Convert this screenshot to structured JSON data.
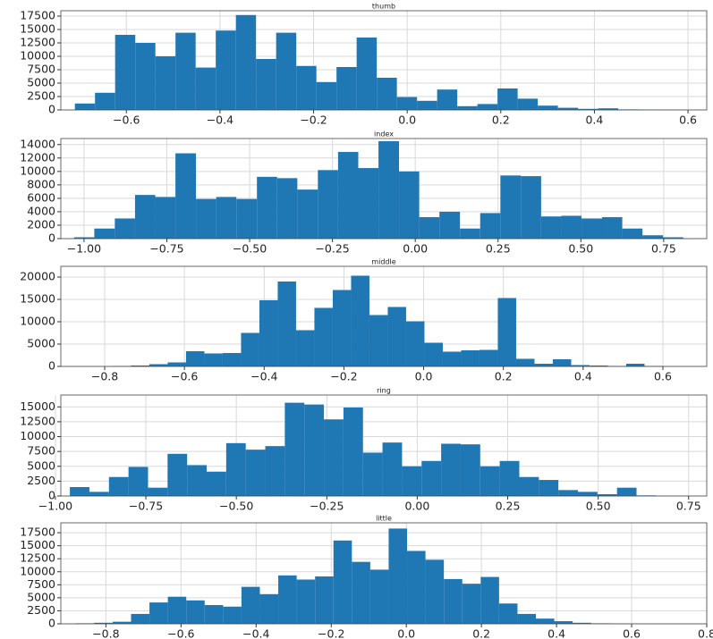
{
  "chart_data": [
    {
      "type": "histogram",
      "title": "thumb",
      "color": "#1f77b4",
      "grid": true,
      "bins": [
        -0.71,
        -0.667,
        -0.624,
        -0.581,
        -0.538,
        -0.495,
        -0.452,
        -0.409,
        -0.366,
        -0.323,
        -0.28,
        -0.237,
        -0.194,
        -0.151,
        -0.108,
        -0.065,
        -0.022,
        0.021,
        0.064,
        0.107,
        0.15,
        0.193,
        0.236,
        0.279,
        0.322,
        0.365,
        0.408,
        0.451,
        0.494,
        0.537,
        0.58
      ],
      "values": [
        1200,
        3200,
        14000,
        12500,
        10000,
        14400,
        7900,
        14800,
        17700,
        9500,
        14400,
        8200,
        5200,
        8000,
        13500,
        6000,
        2400,
        1700,
        3800,
        700,
        1100,
        4000,
        2100,
        800,
        400,
        200,
        300,
        100,
        50,
        20
      ],
      "xlim": [
        -0.74,
        0.64
      ],
      "ylim": [
        0,
        18500
      ],
      "xticks": [
        {
          "value": -0.6,
          "label": "−0.6"
        },
        {
          "value": -0.4,
          "label": "−0.4"
        },
        {
          "value": -0.2,
          "label": "−0.2"
        },
        {
          "value": 0,
          "label": "0.0"
        },
        0.2,
        0.4,
        0.6
      ],
      "yticks": [
        0,
        2500,
        5000,
        7500,
        10000,
        12500,
        15000,
        17500
      ]
    },
    {
      "type": "histogram",
      "title": "index",
      "color": "#1f77b4",
      "grid": true,
      "bins": [
        -1.03,
        -0.969,
        -0.907,
        -0.846,
        -0.785,
        -0.724,
        -0.662,
        -0.601,
        -0.54,
        -0.478,
        -0.417,
        -0.356,
        -0.294,
        -0.233,
        -0.172,
        -0.111,
        -0.049,
        0.012,
        0.073,
        0.135,
        0.196,
        0.257,
        0.319,
        0.38,
        0.441,
        0.502,
        0.564,
        0.625,
        0.686,
        0.748,
        0.809
      ],
      "values": [
        200,
        1500,
        3000,
        6500,
        6200,
        12700,
        5900,
        6200,
        5900,
        9200,
        9000,
        7300,
        10200,
        12900,
        10500,
        14500,
        10000,
        3200,
        4000,
        1500,
        3800,
        9400,
        9300,
        3300,
        3400,
        3000,
        3200,
        1500,
        500,
        200
      ],
      "xlim": [
        -1.07,
        0.88
      ],
      "ylim": [
        0,
        14900
      ],
      "xticks": [
        {
          "value": -1,
          "label": "−1.00"
        },
        {
          "value": -0.75,
          "label": "−0.75"
        },
        {
          "value": -0.5,
          "label": "−0.50"
        },
        {
          "value": -0.25,
          "label": "−0.25"
        },
        {
          "value": 0,
          "label": "0.00"
        },
        0.25,
        {
          "value": 0.5,
          "label": "0.50"
        },
        0.75
      ],
      "yticks": [
        0,
        2000,
        4000,
        6000,
        8000,
        10000,
        12000,
        14000
      ]
    },
    {
      "type": "histogram",
      "title": "middle",
      "color": "#1f77b4",
      "grid": true,
      "bins": [
        -0.78,
        -0.734,
        -0.688,
        -0.642,
        -0.596,
        -0.55,
        -0.504,
        -0.458,
        -0.412,
        -0.366,
        -0.32,
        -0.274,
        -0.228,
        -0.182,
        -0.136,
        -0.09,
        -0.044,
        0.002,
        0.048,
        0.094,
        0.14,
        0.186,
        0.232,
        0.278,
        0.324,
        0.37,
        0.416,
        0.462,
        0.508,
        0.554,
        0.6
      ],
      "values": [
        100,
        200,
        500,
        900,
        3400,
        2900,
        3000,
        7500,
        14800,
        19000,
        8100,
        13100,
        17100,
        20300,
        11500,
        13300,
        10100,
        5300,
        3300,
        3600,
        3700,
        15300,
        1700,
        600,
        1600,
        300,
        200,
        100,
        600,
        100
      ],
      "xlim": [
        -0.91,
        0.71
      ],
      "ylim": [
        0,
        22400
      ],
      "xticks": [
        {
          "value": -0.8,
          "label": "−0.8"
        },
        {
          "value": -0.6,
          "label": "−0.6"
        },
        {
          "value": -0.4,
          "label": "−0.4"
        },
        {
          "value": -0.2,
          "label": "−0.2"
        },
        {
          "value": 0,
          "label": "0.0"
        },
        0.2,
        0.4,
        0.6
      ],
      "yticks": [
        0,
        5000,
        10000,
        15000,
        20000
      ]
    },
    {
      "type": "histogram",
      "title": "ring",
      "color": "#1f77b4",
      "grid": true,
      "bins": [
        -0.96,
        -0.906,
        -0.852,
        -0.798,
        -0.744,
        -0.69,
        -0.636,
        -0.582,
        -0.528,
        -0.474,
        -0.42,
        -0.366,
        -0.312,
        -0.258,
        -0.204,
        -0.15,
        -0.096,
        -0.042,
        0.012,
        0.066,
        0.12,
        0.174,
        0.228,
        0.282,
        0.336,
        0.39,
        0.444,
        0.498,
        0.552,
        0.606,
        0.66
      ],
      "values": [
        1500,
        700,
        3200,
        4900,
        1400,
        7100,
        5200,
        4100,
        8900,
        7800,
        8400,
        15700,
        15400,
        12900,
        14900,
        7300,
        9000,
        5000,
        5900,
        8800,
        8700,
        5000,
        5900,
        3200,
        2700,
        1000,
        700,
        300,
        1400,
        100
      ],
      "xlim": [
        -0.985,
        0.8
      ],
      "ylim": [
        0,
        17000
      ],
      "xticks": [
        {
          "value": -1,
          "label": "−1.00"
        },
        {
          "value": -0.75,
          "label": "−0.75"
        },
        {
          "value": -0.5,
          "label": "−0.50"
        },
        {
          "value": -0.25,
          "label": "−0.25"
        },
        {
          "value": 0,
          "label": "0.00"
        },
        0.25,
        {
          "value": 0.5,
          "label": "0.50"
        },
        0.75
      ],
      "yticks": [
        0,
        2500,
        5000,
        7500,
        10000,
        12500,
        15000
      ]
    },
    {
      "type": "histogram",
      "title": "little",
      "color": "#1f77b4",
      "grid": true,
      "bins": [
        -0.88,
        -0.831,
        -0.782,
        -0.733,
        -0.684,
        -0.635,
        -0.586,
        -0.537,
        -0.488,
        -0.439,
        -0.39,
        -0.341,
        -0.292,
        -0.243,
        -0.194,
        -0.145,
        -0.096,
        -0.047,
        0.002,
        0.051,
        0.1,
        0.149,
        0.198,
        0.247,
        0.296,
        0.345,
        0.394,
        0.443,
        0.492,
        0.541,
        0.59
      ],
      "values": [
        100,
        200,
        400,
        1900,
        4100,
        5200,
        4500,
        3600,
        3300,
        7100,
        5700,
        9300,
        8500,
        9100,
        16000,
        11900,
        10400,
        18300,
        14000,
        12300,
        8600,
        7700,
        9000,
        3900,
        1900,
        1000,
        500,
        200,
        100,
        50
      ],
      "xlim": [
        -0.92,
        0.8
      ],
      "ylim": [
        0,
        19400
      ],
      "xticks": [
        {
          "value": -0.8,
          "label": "−0.8"
        },
        {
          "value": -0.6,
          "label": "−0.6"
        },
        {
          "value": -0.4,
          "label": "−0.4"
        },
        {
          "value": -0.2,
          "label": "−0.2"
        },
        {
          "value": 0,
          "label": "0.0"
        },
        0.2,
        0.4,
        0.6,
        0.8
      ],
      "yticks": [
        0,
        2500,
        5000,
        7500,
        10000,
        12500,
        15000,
        17500
      ]
    }
  ]
}
